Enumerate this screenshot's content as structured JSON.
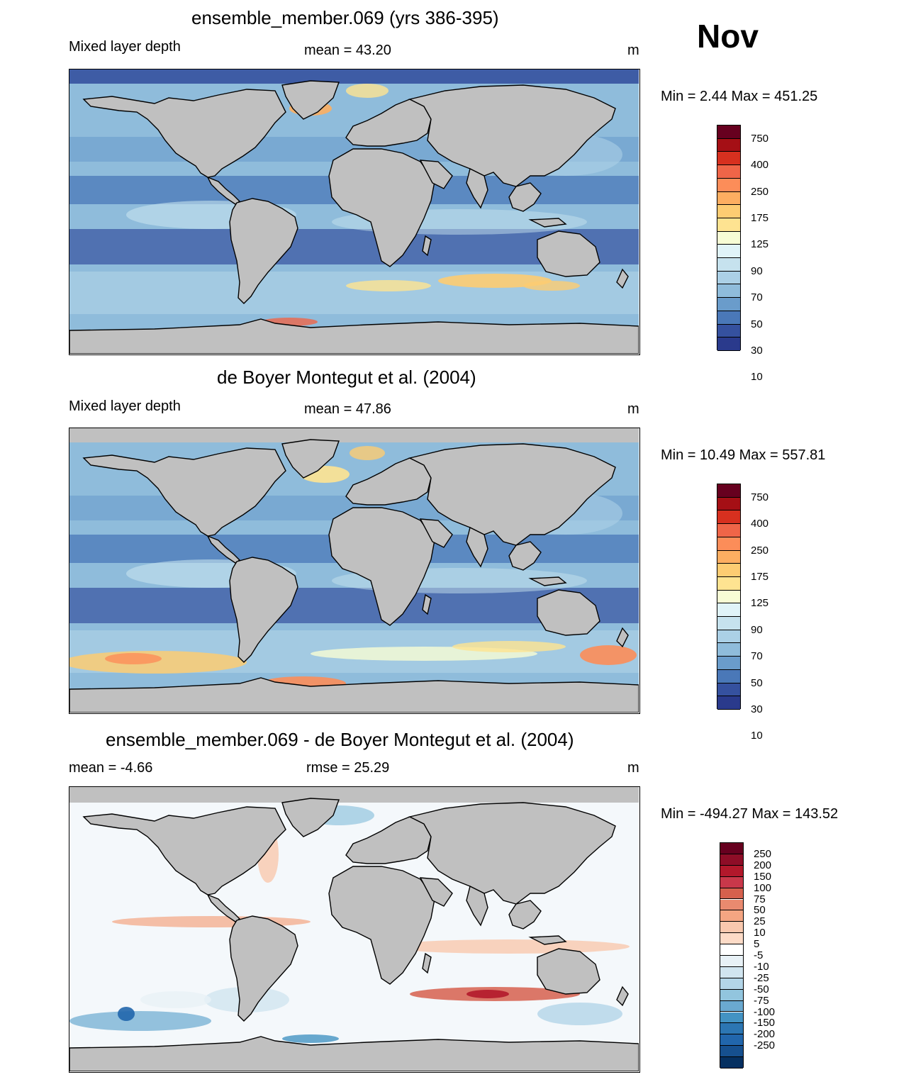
{
  "month": "Nov",
  "panels": [
    {
      "title": "ensemble_member.069 (yrs 386-395)",
      "left_label": "Mixed layer depth",
      "center_label": "mean =  43.20",
      "unit": "m",
      "minmax": "Min =   2.44 Max = 451.25",
      "scale": "abs"
    },
    {
      "title": "de Boyer Montegut et al. (2004)",
      "left_label": "Mixed layer depth",
      "center_label": "mean =  47.86",
      "unit": "m",
      "minmax": "Min =  10.49 Max = 557.81",
      "scale": "abs"
    },
    {
      "title": "ensemble_member.069 - de Boyer Montegut et al. (2004)",
      "left_label": "mean =  -4.66",
      "center_label": "rmse =  25.29",
      "unit": "m",
      "minmax": "Min = -494.27 Max = 143.52",
      "scale": "diff"
    }
  ],
  "colorbar_abs": {
    "labels": [
      "750",
      "400",
      "250",
      "175",
      "125",
      "90",
      "70",
      "50",
      "30",
      "10"
    ],
    "colors": [
      "#67001f",
      "#a50f15",
      "#d7301f",
      "#ef6548",
      "#fc8d59",
      "#fdae61",
      "#fdcc72",
      "#fee391",
      "#f7fcd5",
      "#e0f3f8",
      "#c6e2ee",
      "#abd0e6",
      "#8fbcdb",
      "#6a9ccb",
      "#4a78b8",
      "#35519f",
      "#2a3a8c"
    ]
  },
  "colorbar_diff": {
    "labels": [
      "250",
      "200",
      "150",
      "100",
      "75",
      "50",
      "25",
      "10",
      "5",
      "-5",
      "-10",
      "-25",
      "-50",
      "-75",
      "-100",
      "-150",
      "-200",
      "-250"
    ],
    "colors": [
      "#67001f",
      "#8e0d27",
      "#b2182b",
      "#c9384a",
      "#d6604d",
      "#e98a6f",
      "#f4a582",
      "#f9c8ae",
      "#fddbc7",
      "#ffffff",
      "#e8f1f6",
      "#d1e5f0",
      "#b3d5e8",
      "#92c5de",
      "#6aa9d0",
      "#4393c3",
      "#2c76b3",
      "#2166ac",
      "#16508f",
      "#053061"
    ]
  },
  "map_colors": {
    "land": "#c0c0c0",
    "coast": "#000000",
    "ocean_abs": "#8fbcdb",
    "ocean_diff": "#f4f8fb"
  }
}
